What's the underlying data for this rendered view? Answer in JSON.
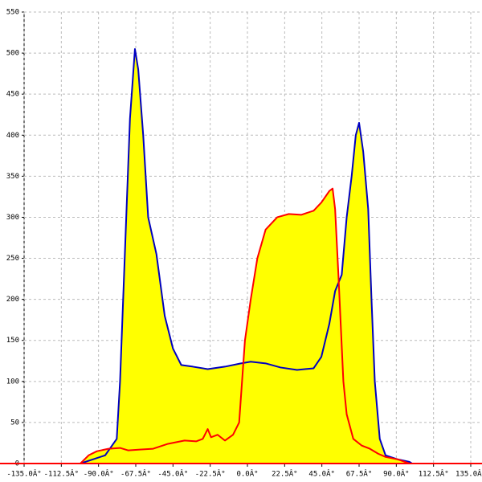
{
  "chart_data": {
    "type": "area",
    "xlim": [
      -135,
      135
    ],
    "ylim": [
      0,
      550
    ],
    "xticks": [
      {
        "value": -135,
        "label": "-135.0Â°"
      },
      {
        "value": -112.5,
        "label": "-112.5Â°"
      },
      {
        "value": -90,
        "label": "-90.0Â°"
      },
      {
        "value": -67.5,
        "label": "-67.5Â°"
      },
      {
        "value": -45,
        "label": "-45.0Â°"
      },
      {
        "value": -22.5,
        "label": "-22.5Â°"
      },
      {
        "value": 0,
        "label": "0.0Â°"
      },
      {
        "value": 22.5,
        "label": "22.5Â°"
      },
      {
        "value": 45,
        "label": "45.0Â°"
      },
      {
        "value": 67.5,
        "label": "67.5Â°"
      },
      {
        "value": 90,
        "label": "90.0Â°"
      },
      {
        "value": 112.5,
        "label": "112.5Â°"
      },
      {
        "value": 135,
        "label": "135.0Â°"
      }
    ],
    "yticks": [
      0,
      50,
      100,
      150,
      200,
      250,
      300,
      350,
      400,
      450,
      500,
      550
    ],
    "grid": true,
    "fill_color": "#ffff00",
    "axis_color": "#ff0000",
    "series": [
      {
        "color": "#0000c0",
        "x": [
          -101,
          -86,
          -79,
          -77,
          -74,
          -71,
          -68,
          -66,
          -63,
          -60,
          -55,
          -50,
          -45,
          -40,
          -33,
          -24,
          -13.6,
          -4,
          2,
          11,
          20,
          30,
          40,
          44.7,
          49.5,
          53,
          57,
          60,
          63,
          65.5,
          67.5,
          70,
          73,
          75,
          77,
          80,
          83.5,
          91,
          98,
          99.5
        ],
        "values": [
          0,
          10,
          30,
          100,
          260,
          420,
          505,
          480,
          400,
          300,
          255,
          180,
          140,
          120,
          118,
          115,
          118,
          122,
          124,
          122,
          117,
          114,
          116,
          130,
          170,
          210,
          230,
          300,
          350,
          400,
          415,
          380,
          310,
          200,
          100,
          30,
          10,
          5,
          2,
          0
        ]
      },
      {
        "color": "#ff0000",
        "x": [
          -101,
          -96,
          -91,
          -84,
          -77,
          -72,
          -65,
          -57,
          -48,
          -38,
          -31,
          -27,
          -24,
          -22,
          -18,
          -13.6,
          -8.7,
          -5,
          -1.5,
          2,
          6,
          11,
          18,
          25,
          32.5,
          40,
          44.7,
          49.5,
          51.5,
          53,
          55,
          58,
          60,
          64,
          69,
          74,
          79,
          83.5,
          91,
          98
        ],
        "values": [
          0,
          10,
          15,
          18,
          19,
          16,
          17,
          18,
          24,
          28,
          27,
          30,
          42,
          32,
          35,
          28,
          35,
          50,
          150,
          200,
          250,
          285,
          300,
          304,
          303,
          308,
          318,
          332,
          335,
          310,
          230,
          100,
          60,
          30,
          22,
          18,
          12,
          8,
          5,
          0
        ]
      }
    ]
  }
}
